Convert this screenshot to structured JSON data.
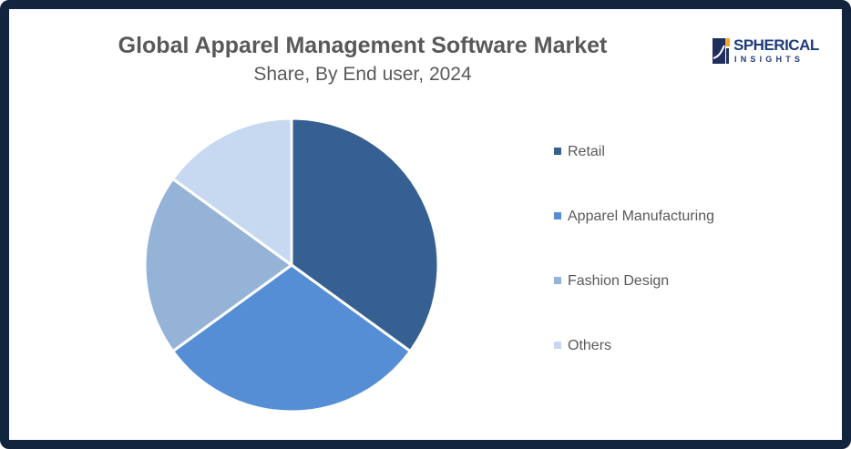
{
  "header": {
    "title": "Global Apparel Management Software Market",
    "subtitle": "Share, By End user, 2024"
  },
  "logo": {
    "line1": "SPHERICAL",
    "line2": "INSIGHTS"
  },
  "legend": [
    {
      "label": "Retail",
      "color": "#376092"
    },
    {
      "label": "Apparel Manufacturing",
      "color": "#558ed5"
    },
    {
      "label": "Fashion Design",
      "color": "#95b3d7"
    },
    {
      "label": "Others",
      "color": "#c6d9f1"
    }
  ],
  "chart_data": {
    "type": "pie",
    "title": "Global Apparel Management Software Market",
    "subtitle": "Share, By End user, 2024",
    "categories": [
      "Retail",
      "Apparel Manufacturing",
      "Fashion Design",
      "Others"
    ],
    "values": [
      35,
      30,
      20,
      15
    ],
    "unit": "%",
    "colors": [
      "#376092",
      "#558ed5",
      "#95b3d7",
      "#c6d9f1"
    ],
    "legend_position": "right",
    "start_angle": "12 o'clock, clockwise"
  }
}
